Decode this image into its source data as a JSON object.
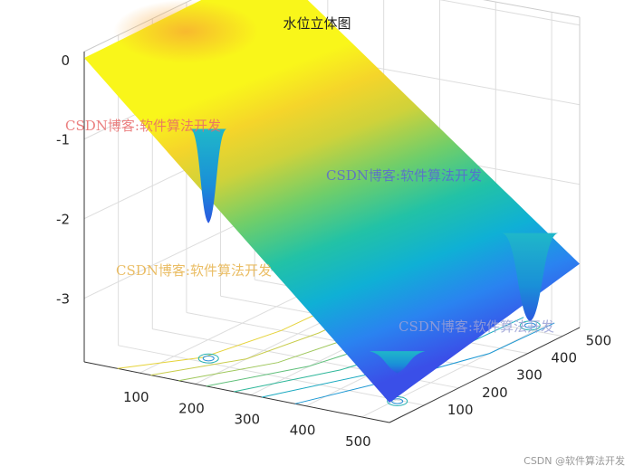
{
  "chart_data": {
    "type": "surface",
    "title": "水位立体图",
    "colormap": "parula",
    "grid": true,
    "axes": {
      "x": {
        "range": [
          0,
          550
        ],
        "ticks": [
          100,
          200,
          300,
          400,
          500
        ],
        "label": ""
      },
      "y": {
        "range": [
          0,
          550
        ],
        "ticks": [
          100,
          200,
          300,
          400,
          500
        ],
        "label": ""
      },
      "z": {
        "range": [
          -3.8,
          0.1
        ],
        "ticks": [
          0,
          -1,
          -2,
          -3
        ],
        "label": ""
      }
    },
    "surface": {
      "corner_heights": [
        {
          "x": 0,
          "y": 0,
          "z": 0.02
        },
        {
          "x": 0,
          "y": 550,
          "z": 0.05
        },
        {
          "x": 550,
          "y": 0,
          "z": -3.55
        },
        {
          "x": 550,
          "y": 550,
          "z": -3.0
        }
      ],
      "depressions": [
        {
          "x": 150,
          "y": 120,
          "z_min": -2.1
        },
        {
          "x": 480,
          "y": 520,
          "z_min": -3.75
        },
        {
          "x": 505,
          "y": 95,
          "z_min": -3.45
        }
      ]
    },
    "contour_projection": "bottom"
  },
  "watermarks": [
    {
      "text": "CSDN博客:软件算法开发",
      "color": "#e86a6a"
    },
    {
      "text": "CSDN博客:软件算法开发",
      "color": "#5a62d8"
    },
    {
      "text": "CSDN博客:软件算法开发",
      "color": "#e7b24a"
    },
    {
      "text": "CSDN博客:软件算法开发",
      "color": "#9aa0d6"
    }
  ],
  "corner_caption": "CSDN @软件算法开发"
}
